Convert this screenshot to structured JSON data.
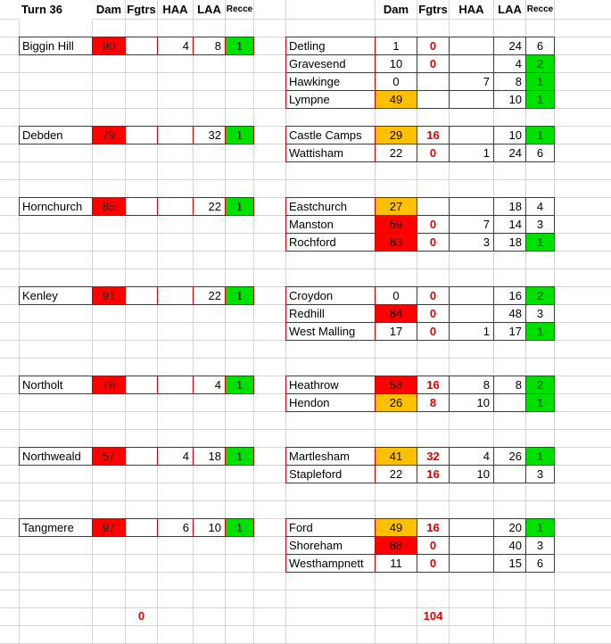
{
  "title": "Turn 36",
  "headers": {
    "left": [
      "Dam",
      "Fgtrs",
      "HAA",
      "LAA",
      "Recce"
    ],
    "right": [
      "Dam",
      "Fgtrs",
      "HAA",
      "LAA",
      "Recce"
    ]
  },
  "colors": {
    "red": "#ff0000",
    "orange": "#ffc000",
    "green": "#00e000",
    "border": "#cc0000",
    "redtext": "#e00000"
  },
  "sectors": [
    {
      "name": "Biggin Hill",
      "dam": "90",
      "dam_color": "red",
      "fgtrs": "",
      "haa": "4",
      "laa": "8",
      "recce": "1",
      "recce_color": "green",
      "satellites": [
        {
          "name": "Detling",
          "dam": "1",
          "dam_color": "",
          "fgtrs": "0",
          "haa": "",
          "laa": "24",
          "recce": "6",
          "recce_color": ""
        },
        {
          "name": "Gravesend",
          "dam": "10",
          "dam_color": "",
          "fgtrs": "0",
          "haa": "",
          "laa": "4",
          "recce": "2",
          "recce_color": "green"
        },
        {
          "name": "Hawkinge",
          "dam": "0",
          "dam_color": "",
          "fgtrs": "",
          "haa": "7",
          "laa": "8",
          "recce": "1",
          "recce_color": "green"
        },
        {
          "name": "Lympne",
          "dam": "49",
          "dam_color": "orange",
          "fgtrs": "",
          "haa": "",
          "laa": "10",
          "recce": "1",
          "recce_color": "green"
        }
      ]
    },
    {
      "name": "Debden",
      "dam": "79",
      "dam_color": "red",
      "fgtrs": "",
      "haa": "",
      "laa": "32",
      "recce": "1",
      "recce_color": "green",
      "satellites": [
        {
          "name": "Castle Camps",
          "dam": "29",
          "dam_color": "orange",
          "fgtrs": "16",
          "haa": "",
          "laa": "10",
          "recce": "1",
          "recce_color": "green"
        },
        {
          "name": "Wattisham",
          "dam": "22",
          "dam_color": "",
          "fgtrs": "0",
          "haa": "1",
          "laa": "24",
          "recce": "6",
          "recce_color": ""
        }
      ]
    },
    {
      "name": "Hornchurch",
      "dam": "85",
      "dam_color": "red",
      "fgtrs": "",
      "haa": "",
      "laa": "22",
      "recce": "1",
      "recce_color": "green",
      "satellites": [
        {
          "name": "Eastchurch",
          "dam": "27",
          "dam_color": "orange",
          "fgtrs": "",
          "haa": "",
          "laa": "18",
          "recce": "4",
          "recce_color": ""
        },
        {
          "name": "Manston",
          "dam": "59",
          "dam_color": "red",
          "fgtrs": "0",
          "haa": "7",
          "laa": "14",
          "recce": "3",
          "recce_color": ""
        },
        {
          "name": "Rochford",
          "dam": "83",
          "dam_color": "red",
          "fgtrs": "0",
          "haa": "3",
          "laa": "18",
          "recce": "1",
          "recce_color": "green"
        }
      ]
    },
    {
      "name": "Kenley",
      "dam": "91",
      "dam_color": "red",
      "fgtrs": "",
      "haa": "",
      "laa": "22",
      "recce": "1",
      "recce_color": "green",
      "satellites": [
        {
          "name": "Croydon",
          "dam": "0",
          "dam_color": "",
          "fgtrs": "0",
          "haa": "",
          "laa": "16",
          "recce": "2",
          "recce_color": "green"
        },
        {
          "name": "Redhill",
          "dam": "84",
          "dam_color": "red",
          "fgtrs": "0",
          "haa": "",
          "laa": "48",
          "recce": "3",
          "recce_color": ""
        },
        {
          "name": "West Malling",
          "dam": "17",
          "dam_color": "",
          "fgtrs": "0",
          "haa": "1",
          "laa": "17",
          "recce": "1",
          "recce_color": "green"
        }
      ]
    },
    {
      "name": "Northolt",
      "dam": "78",
      "dam_color": "red",
      "fgtrs": "",
      "haa": "",
      "laa": "4",
      "recce": "1",
      "recce_color": "green",
      "satellites": [
        {
          "name": "Heathrow",
          "dam": "58",
          "dam_color": "red",
          "fgtrs": "16",
          "haa": "8",
          "laa": "8",
          "recce": "2",
          "recce_color": "green"
        },
        {
          "name": "Hendon",
          "dam": "26",
          "dam_color": "orange",
          "fgtrs": "8",
          "haa": "10",
          "laa": "",
          "recce": "1",
          "recce_color": "green"
        }
      ]
    },
    {
      "name": "Northweald",
      "dam": "57",
      "dam_color": "red",
      "fgtrs": "",
      "haa": "4",
      "laa": "18",
      "recce": "1",
      "recce_color": "green",
      "satellites": [
        {
          "name": "Martlesham",
          "dam": "41",
          "dam_color": "orange",
          "fgtrs": "32",
          "haa": "4",
          "laa": "26",
          "recce": "1",
          "recce_color": "green"
        },
        {
          "name": "Stapleford",
          "dam": "22",
          "dam_color": "",
          "fgtrs": "16",
          "haa": "10",
          "laa": "",
          "recce": "3",
          "recce_color": ""
        }
      ]
    },
    {
      "name": "Tangmere",
      "dam": "97",
      "dam_color": "red",
      "fgtrs": "",
      "haa": "6",
      "laa": "10",
      "recce": "1",
      "recce_color": "green",
      "satellites": [
        {
          "name": "Ford",
          "dam": "49",
          "dam_color": "orange",
          "fgtrs": "16",
          "haa": "",
          "laa": "20",
          "recce": "1",
          "recce_color": "green"
        },
        {
          "name": "Shoreham",
          "dam": "88",
          "dam_color": "red",
          "fgtrs": "0",
          "haa": "",
          "laa": "40",
          "recce": "3",
          "recce_color": ""
        },
        {
          "name": "Westhampnett",
          "dam": "11",
          "dam_color": "",
          "fgtrs": "0",
          "haa": "",
          "laa": "15",
          "recce": "6",
          "recce_color": ""
        }
      ]
    }
  ],
  "totals": {
    "left_fgtrs": "0",
    "right_fgtrs": "104"
  }
}
